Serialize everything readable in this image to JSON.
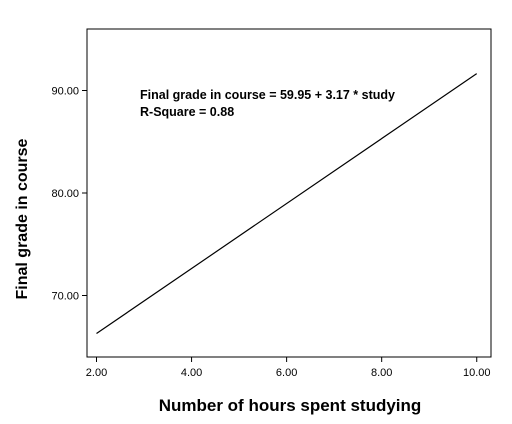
{
  "chart_data": {
    "type": "line",
    "xlabel": "Number of hours spent studying",
    "ylabel": "Final grade in course",
    "xlim": [
      1.8,
      10.3
    ],
    "ylim": [
      64.0,
      96.0
    ],
    "x_ticks": [
      "2.00",
      "4.00",
      "6.00",
      "8.00",
      "10.00"
    ],
    "x_tick_values": [
      2,
      4,
      6,
      8,
      10
    ],
    "y_ticks": [
      "70.00",
      "80.00",
      "90.00"
    ],
    "y_tick_values": [
      70,
      80,
      90
    ],
    "series": [
      {
        "x": [
          2.0,
          10.0
        ],
        "y": [
          66.29,
          91.65
        ],
        "color": "#000000"
      }
    ],
    "annotations": [
      "Final grade in course = 59.95 + 3.17 * study",
      "R-Square = 0.88"
    ],
    "grid": false
  }
}
